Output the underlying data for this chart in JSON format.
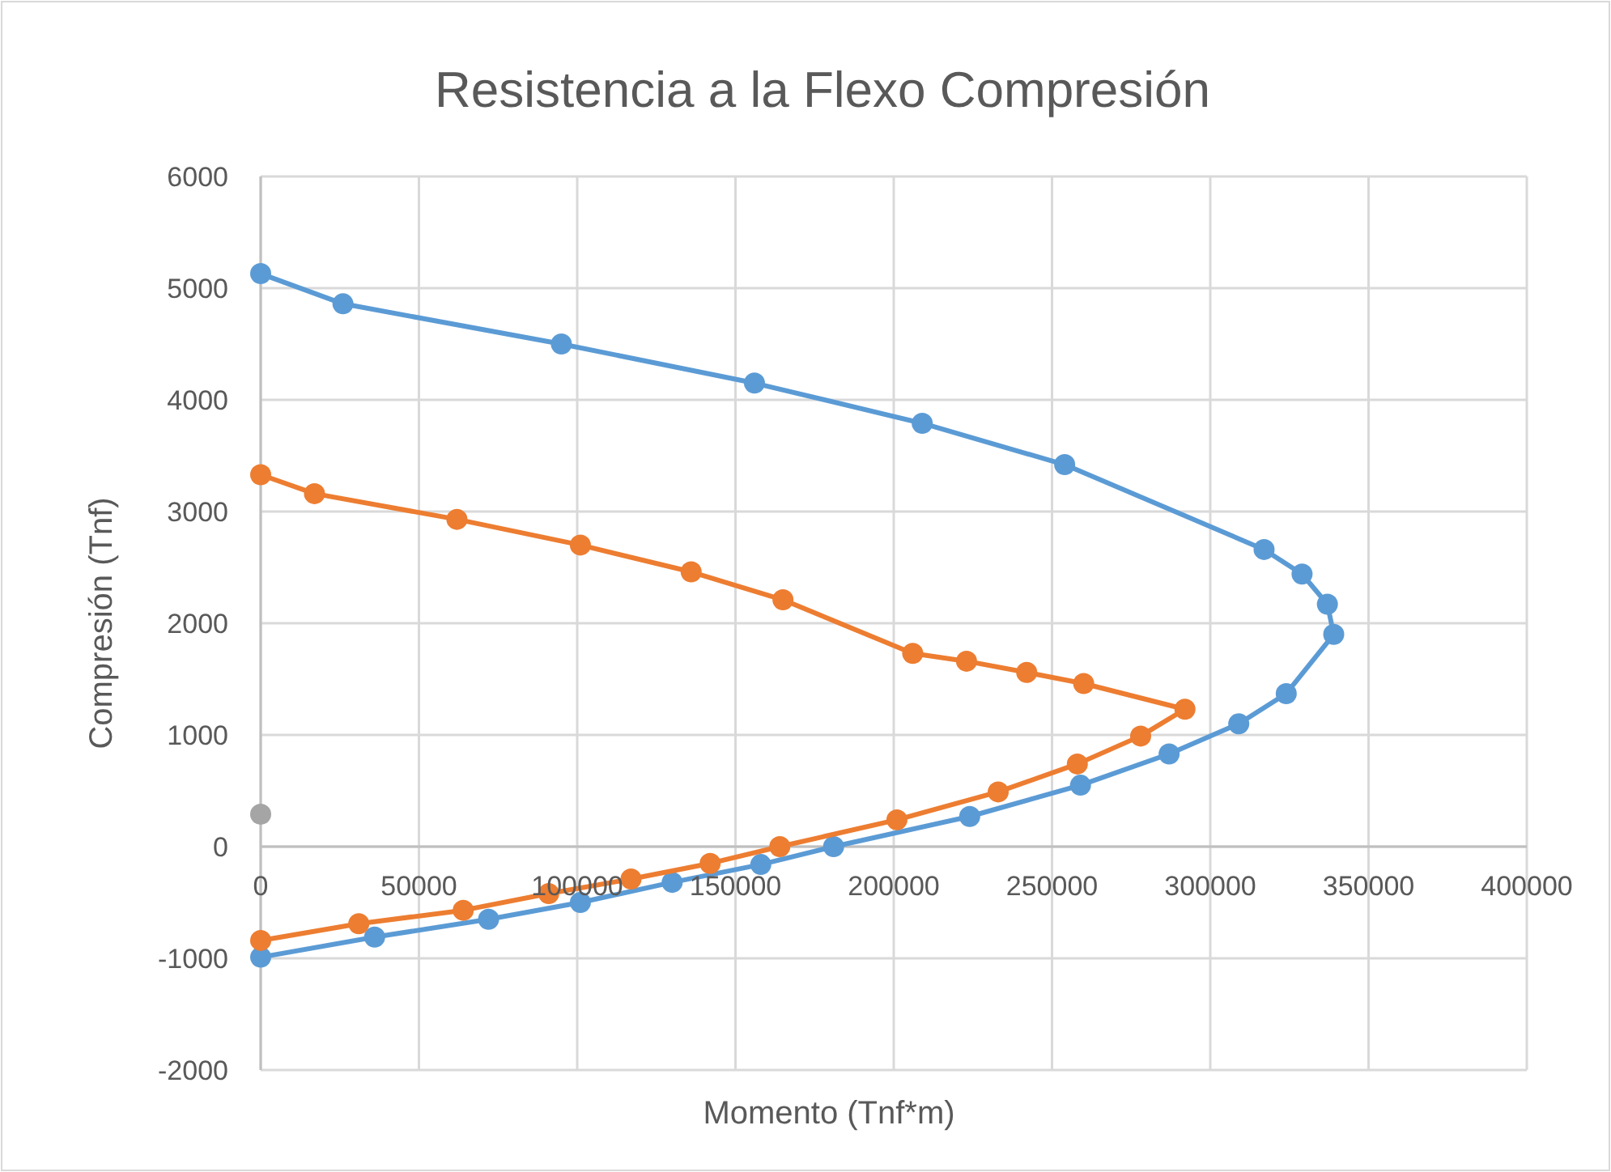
{
  "chart_data": {
    "type": "line",
    "title": "Resistencia a la Flexo Compresión",
    "xlabel": "Momento (Tnf*m)",
    "ylabel": "Compresión (Tnf)",
    "xlim": [
      0,
      400000
    ],
    "xticks": [
      0,
      50000,
      100000,
      150000,
      200000,
      250000,
      300000,
      350000,
      400000
    ],
    "ylim": [
      -2000,
      6000
    ],
    "yticks": [
      -2000,
      -1000,
      0,
      1000,
      2000,
      3000,
      4000,
      5000,
      6000
    ],
    "grid": true,
    "marker": "circle",
    "line_style": "solid",
    "series": [
      {
        "color": "#5b9bd5",
        "x": [
          0,
          26000,
          95000,
          156000,
          209000,
          254000,
          317000,
          329000,
          337000,
          339000,
          324000,
          309000,
          287000,
          259000,
          224000,
          181000,
          158000,
          130000,
          101000,
          72000,
          36000,
          0
        ],
        "values": [
          5130,
          4860,
          4500,
          4150,
          3790,
          3420,
          2660,
          2440,
          2170,
          1900,
          1370,
          1100,
          830,
          550,
          270,
          0,
          -160,
          -320,
          -500,
          -650,
          -810,
          -990
        ]
      },
      {
        "color": "#ed7d31",
        "x": [
          0,
          17000,
          62000,
          101000,
          136000,
          165000,
          206000,
          223000,
          242000,
          260000,
          292000,
          278000,
          258000,
          233000,
          201000,
          164000,
          142000,
          117000,
          91000,
          64000,
          31000,
          0
        ],
        "values": [
          3330,
          3160,
          2930,
          2700,
          2460,
          2210,
          1730,
          1660,
          1560,
          1460,
          1230,
          990,
          740,
          490,
          240,
          0,
          -150,
          -290,
          -420,
          -570,
          -690,
          -840
        ]
      },
      {
        "type": "scatter",
        "color": "#a5a5a5",
        "x": [
          0
        ],
        "values": [
          290
        ]
      }
    ]
  }
}
